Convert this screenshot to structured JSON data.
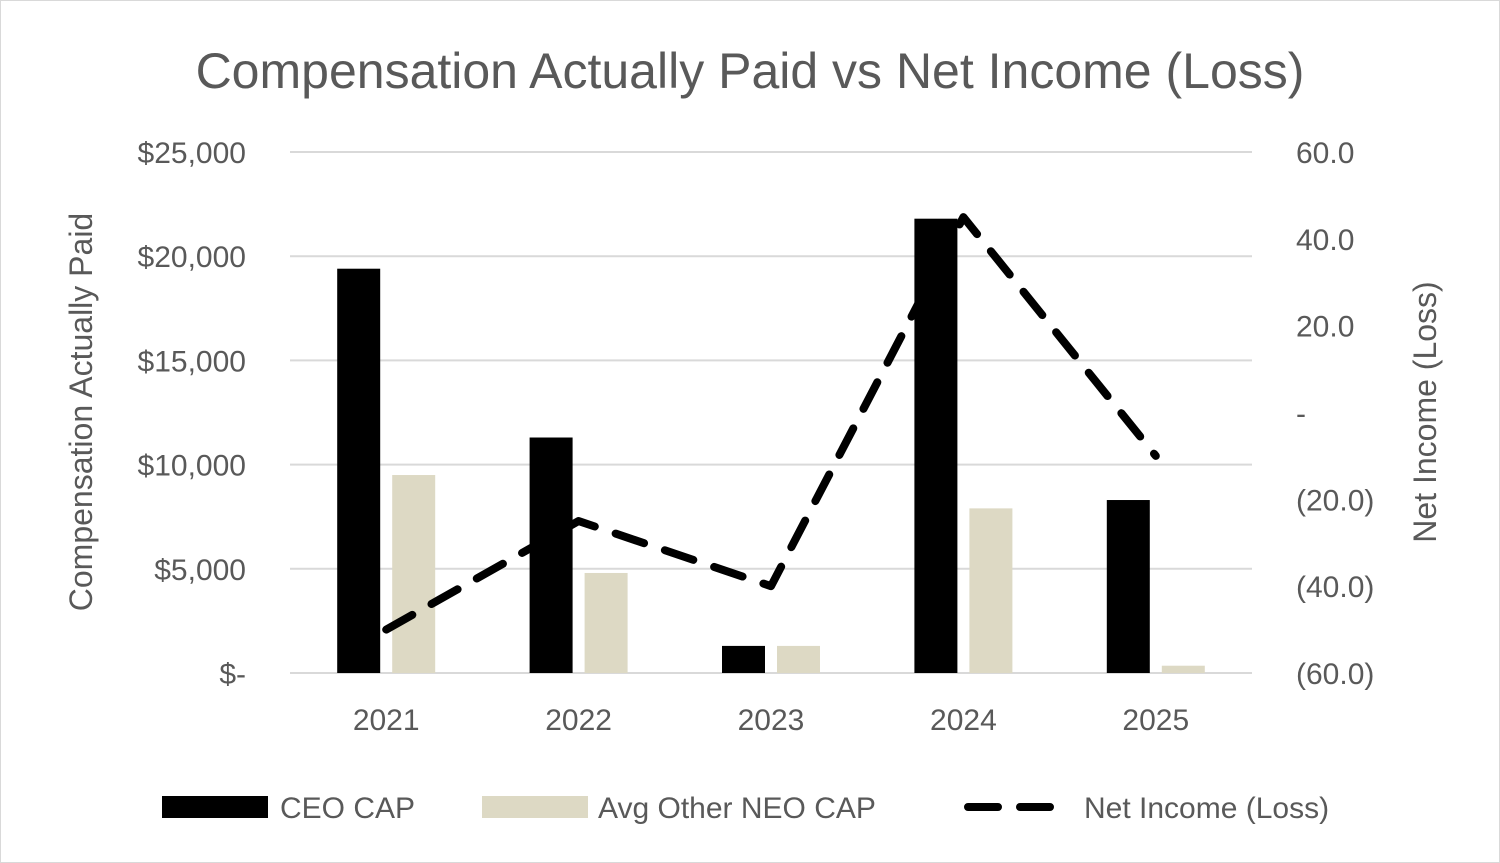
{
  "chart_data": {
    "type": "bar",
    "title": "Compensation Actually Paid vs Net Income (Loss)",
    "categories": [
      "2021",
      "2022",
      "2023",
      "2024",
      "2025"
    ],
    "y_left": {
      "label": "Compensation Actually Paid",
      "range": [
        0,
        25000
      ],
      "ticks": [
        {
          "value": 0,
          "label": "$-"
        },
        {
          "value": 5000,
          "label": "$5,000"
        },
        {
          "value": 10000,
          "label": "$10,000"
        },
        {
          "value": 15000,
          "label": "$15,000"
        },
        {
          "value": 20000,
          "label": "$20,000"
        },
        {
          "value": 25000,
          "label": "$25,000"
        }
      ]
    },
    "y_right": {
      "label": "Net Income (Loss)",
      "range": [
        -60,
        60
      ],
      "ticks": [
        {
          "value": -60,
          "label": "(60.0)"
        },
        {
          "value": -40,
          "label": "(40.0)"
        },
        {
          "value": -20,
          "label": "(20.0)"
        },
        {
          "value": 0,
          "label": "-"
        },
        {
          "value": 20,
          "label": "20.0"
        },
        {
          "value": 40,
          "label": "40.0"
        },
        {
          "value": 60,
          "label": "60.0"
        }
      ]
    },
    "grid": true,
    "legend_position": "bottom",
    "series": [
      {
        "name": "CEO CAP",
        "type": "bar",
        "axis": "left",
        "color": "#000000",
        "values": [
          19400,
          11300,
          1300,
          21800,
          8300
        ]
      },
      {
        "name": "Avg Other NEO CAP",
        "type": "bar",
        "axis": "left",
        "color": "#ddd9c4",
        "values": [
          9500,
          4800,
          1300,
          7900,
          350
        ]
      },
      {
        "name": "Net Income (Loss)",
        "type": "line",
        "style": "dashed",
        "axis": "right",
        "color": "#000000",
        "values": [
          -50,
          -25,
          -40,
          45,
          -10
        ]
      }
    ]
  }
}
